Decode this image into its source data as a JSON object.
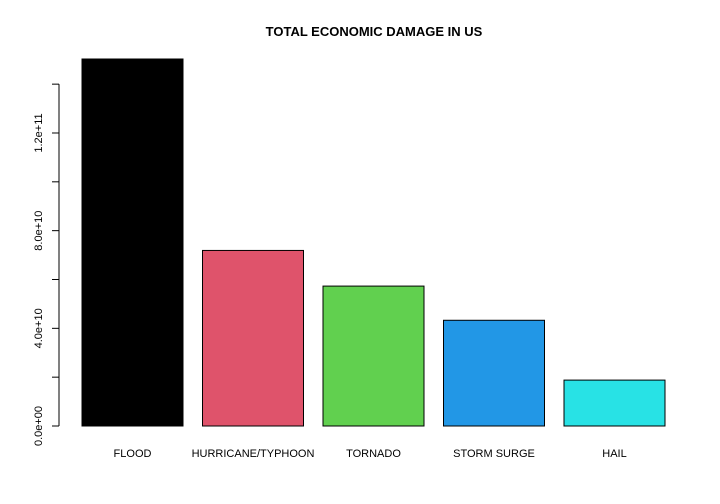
{
  "chart_data": {
    "type": "bar",
    "title": "TOTAL ECONOMIC DAMAGE IN US",
    "xlabel": "",
    "ylabel": "",
    "categories": [
      "FLOOD",
      "HURRICANE/TYPHOON",
      "TORNADO",
      "STORM SURGE",
      "HAIL"
    ],
    "values": [
      150300000000,
      71900000000,
      57300000000,
      43300000000,
      18800000000
    ],
    "colors": [
      "#000000",
      "#DF536B",
      "#61D04F",
      "#2297E6",
      "#28E2E5"
    ],
    "ylim": [
      0,
      150300000000
    ],
    "yticks": [
      0,
      20000000000,
      40000000000,
      60000000000,
      80000000000,
      100000000000,
      120000000000,
      140000000000
    ],
    "ytick_labels": [
      "0.0e+00",
      "",
      "4.0e+10",
      "",
      "8.0e+10",
      "",
      "1.2e+11",
      ""
    ],
    "grid": false,
    "legend": false
  }
}
